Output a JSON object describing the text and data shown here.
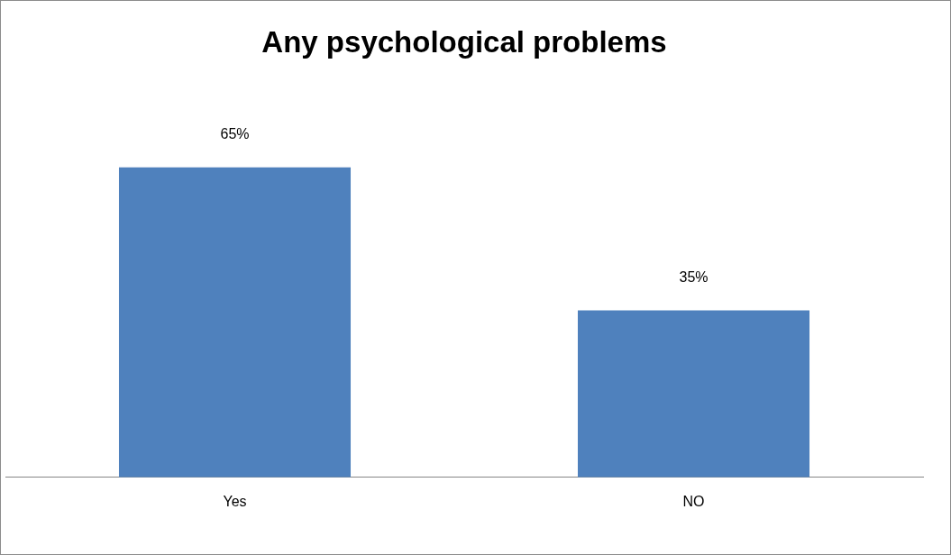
{
  "chart_data": {
    "type": "bar",
    "title": "Any psychological problems",
    "categories": [
      "Yes",
      "NO"
    ],
    "values": [
      65,
      35
    ],
    "value_labels": [
      "65%",
      "35%"
    ],
    "color": "#4f81bd"
  }
}
